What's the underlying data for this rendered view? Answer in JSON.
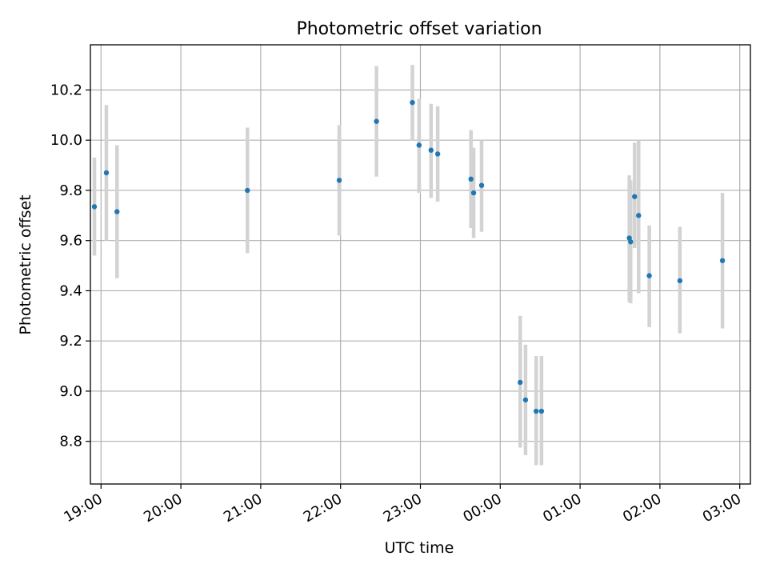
{
  "colors": {
    "points": "#1f77b4",
    "errorbars": "#d3d3d3",
    "grid": "#b0b0b0",
    "axes": "#000000",
    "background": "#ffffff"
  },
  "chart_data": {
    "type": "scatter",
    "title": "Photometric offset variation",
    "xlabel": "UTC time",
    "ylabel": "Photometric offset",
    "grid": true,
    "x_is_time": true,
    "xlim": [
      "18:52",
      "03:08"
    ],
    "ylim": [
      8.63,
      10.38
    ],
    "x_ticks": [
      "19:00",
      "20:00",
      "21:00",
      "22:00",
      "23:00",
      "00:00",
      "01:00",
      "02:00",
      "03:00"
    ],
    "y_ticks": [
      "8.8",
      "9.0",
      "9.2",
      "9.4",
      "9.6",
      "9.8",
      "10.0",
      "10.2"
    ],
    "series": [
      {
        "points": [
          {
            "x": "18:55",
            "y": 9.735,
            "err_low": 9.54,
            "err_high": 9.93
          },
          {
            "x": "19:04",
            "y": 9.87,
            "err_low": 9.6,
            "err_high": 10.14
          },
          {
            "x": "19:12",
            "y": 9.715,
            "err_low": 9.45,
            "err_high": 9.98
          },
          {
            "x": "20:50",
            "y": 9.8,
            "err_low": 9.55,
            "err_high": 10.05
          },
          {
            "x": "21:59",
            "y": 9.84,
            "err_low": 9.62,
            "err_high": 10.06
          },
          {
            "x": "22:27",
            "y": 10.075,
            "err_low": 9.855,
            "err_high": 10.295
          },
          {
            "x": "22:54",
            "y": 10.15,
            "err_low": 10.0,
            "err_high": 10.3
          },
          {
            "x": "22:59",
            "y": 9.98,
            "err_low": 9.79,
            "err_high": 10.165
          },
          {
            "x": "23:08",
            "y": 9.96,
            "err_low": 9.77,
            "err_high": 10.145
          },
          {
            "x": "23:13",
            "y": 9.945,
            "err_low": 9.755,
            "err_high": 10.135
          },
          {
            "x": "23:38",
            "y": 9.845,
            "err_low": 9.65,
            "err_high": 10.04
          },
          {
            "x": "23:40",
            "y": 9.79,
            "err_low": 9.61,
            "err_high": 9.97
          },
          {
            "x": "23:46",
            "y": 9.82,
            "err_low": 9.635,
            "err_high": 10.0
          },
          {
            "x": "00:15",
            "y": 9.035,
            "err_low": 8.775,
            "err_high": 9.3
          },
          {
            "x": "00:19",
            "y": 8.965,
            "err_low": 8.745,
            "err_high": 9.185
          },
          {
            "x": "00:27",
            "y": 8.92,
            "err_low": 8.705,
            "err_high": 9.14
          },
          {
            "x": "00:31",
            "y": 8.92,
            "err_low": 8.705,
            "err_high": 9.14
          },
          {
            "x": "01:37",
            "y": 9.61,
            "err_low": 9.355,
            "err_high": 9.86
          },
          {
            "x": "01:38",
            "y": 9.595,
            "err_low": 9.35,
            "err_high": 9.84
          },
          {
            "x": "01:41",
            "y": 9.775,
            "err_low": 9.57,
            "err_high": 9.99
          },
          {
            "x": "01:44",
            "y": 9.7,
            "err_low": 9.39,
            "err_high": 10.0
          },
          {
            "x": "01:52",
            "y": 9.46,
            "err_low": 9.255,
            "err_high": 9.66
          },
          {
            "x": "02:15",
            "y": 9.44,
            "err_low": 9.23,
            "err_high": 9.655
          },
          {
            "x": "02:47",
            "y": 9.52,
            "err_low": 9.25,
            "err_high": 9.79
          }
        ]
      }
    ]
  }
}
